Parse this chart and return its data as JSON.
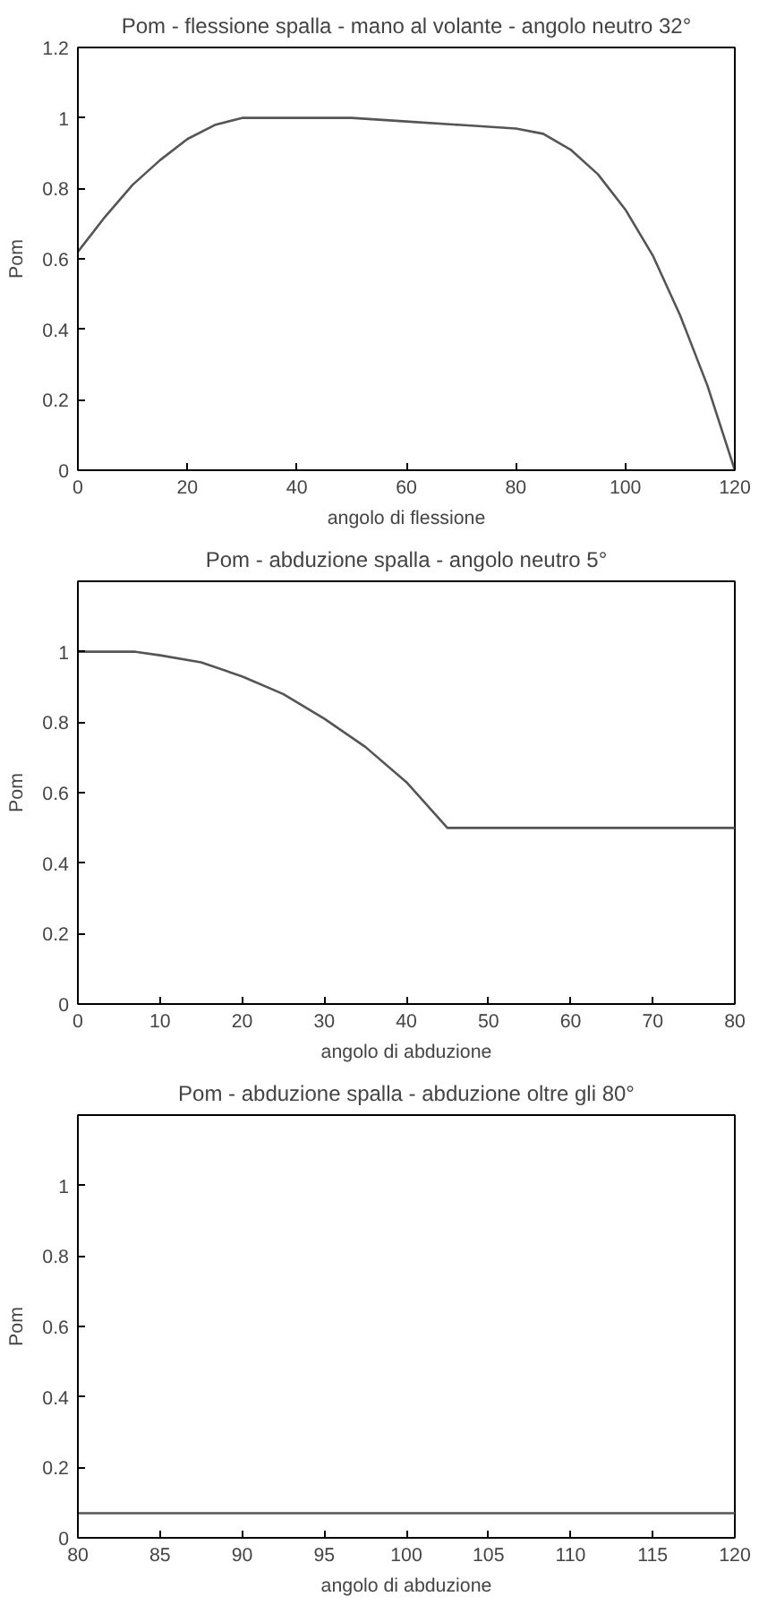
{
  "chart_data": [
    {
      "type": "line",
      "title": "Pom - flessione spalla - mano al volante - angolo neutro 32°",
      "xlabel": "angolo di flessione",
      "ylabel": "Pom",
      "x": [
        0,
        5,
        10,
        15,
        20,
        25,
        30,
        40,
        50,
        60,
        70,
        80,
        85,
        90,
        95,
        100,
        105,
        110,
        115,
        120
      ],
      "series": [
        {
          "color": "#555555",
          "values": [
            0.62,
            0.72,
            0.81,
            0.88,
            0.94,
            0.98,
            1.0,
            1.0,
            1.0,
            0.99,
            0.98,
            0.97,
            0.955,
            0.91,
            0.84,
            0.74,
            0.61,
            0.44,
            0.24,
            0.0
          ]
        }
      ],
      "xlim": [
        0,
        120
      ],
      "ylim": [
        0,
        1.2
      ],
      "xticks": [
        0,
        20,
        40,
        60,
        80,
        100,
        120
      ],
      "yticks": [
        0,
        0.2,
        0.4,
        0.6,
        0.8,
        1,
        1.2
      ]
    },
    {
      "type": "line",
      "title": "Pom - abduzione spalla - angolo neutro 5°",
      "xlabel": "angolo di abduzione",
      "ylabel": "Pom",
      "x": [
        0,
        7,
        10,
        15,
        20,
        25,
        30,
        35,
        40,
        45,
        80
      ],
      "series": [
        {
          "color": "#555555",
          "values": [
            1.0,
            1.0,
            0.99,
            0.97,
            0.93,
            0.88,
            0.81,
            0.73,
            0.63,
            0.5,
            0.5
          ]
        }
      ],
      "xlim": [
        0,
        80
      ],
      "ylim": [
        0,
        1.2
      ],
      "xticks": [
        0,
        10,
        20,
        30,
        40,
        50,
        60,
        70,
        80
      ],
      "yticks": [
        0,
        0.2,
        0.4,
        0.6,
        0.8,
        1
      ]
    },
    {
      "type": "line",
      "title": "Pom - abduzione spalla - abduzione oltre gli 80°",
      "xlabel": "angolo di abduzione",
      "ylabel": "Pom",
      "x": [
        80,
        120
      ],
      "series": [
        {
          "color": "#555555",
          "values": [
            0.07,
            0.07
          ]
        }
      ],
      "xlim": [
        80,
        120
      ],
      "ylim": [
        0,
        1.2
      ],
      "xticks": [
        80,
        85,
        90,
        95,
        100,
        105,
        110,
        115,
        120
      ],
      "yticks": [
        0,
        0.2,
        0.4,
        0.6,
        0.8,
        1
      ]
    }
  ]
}
